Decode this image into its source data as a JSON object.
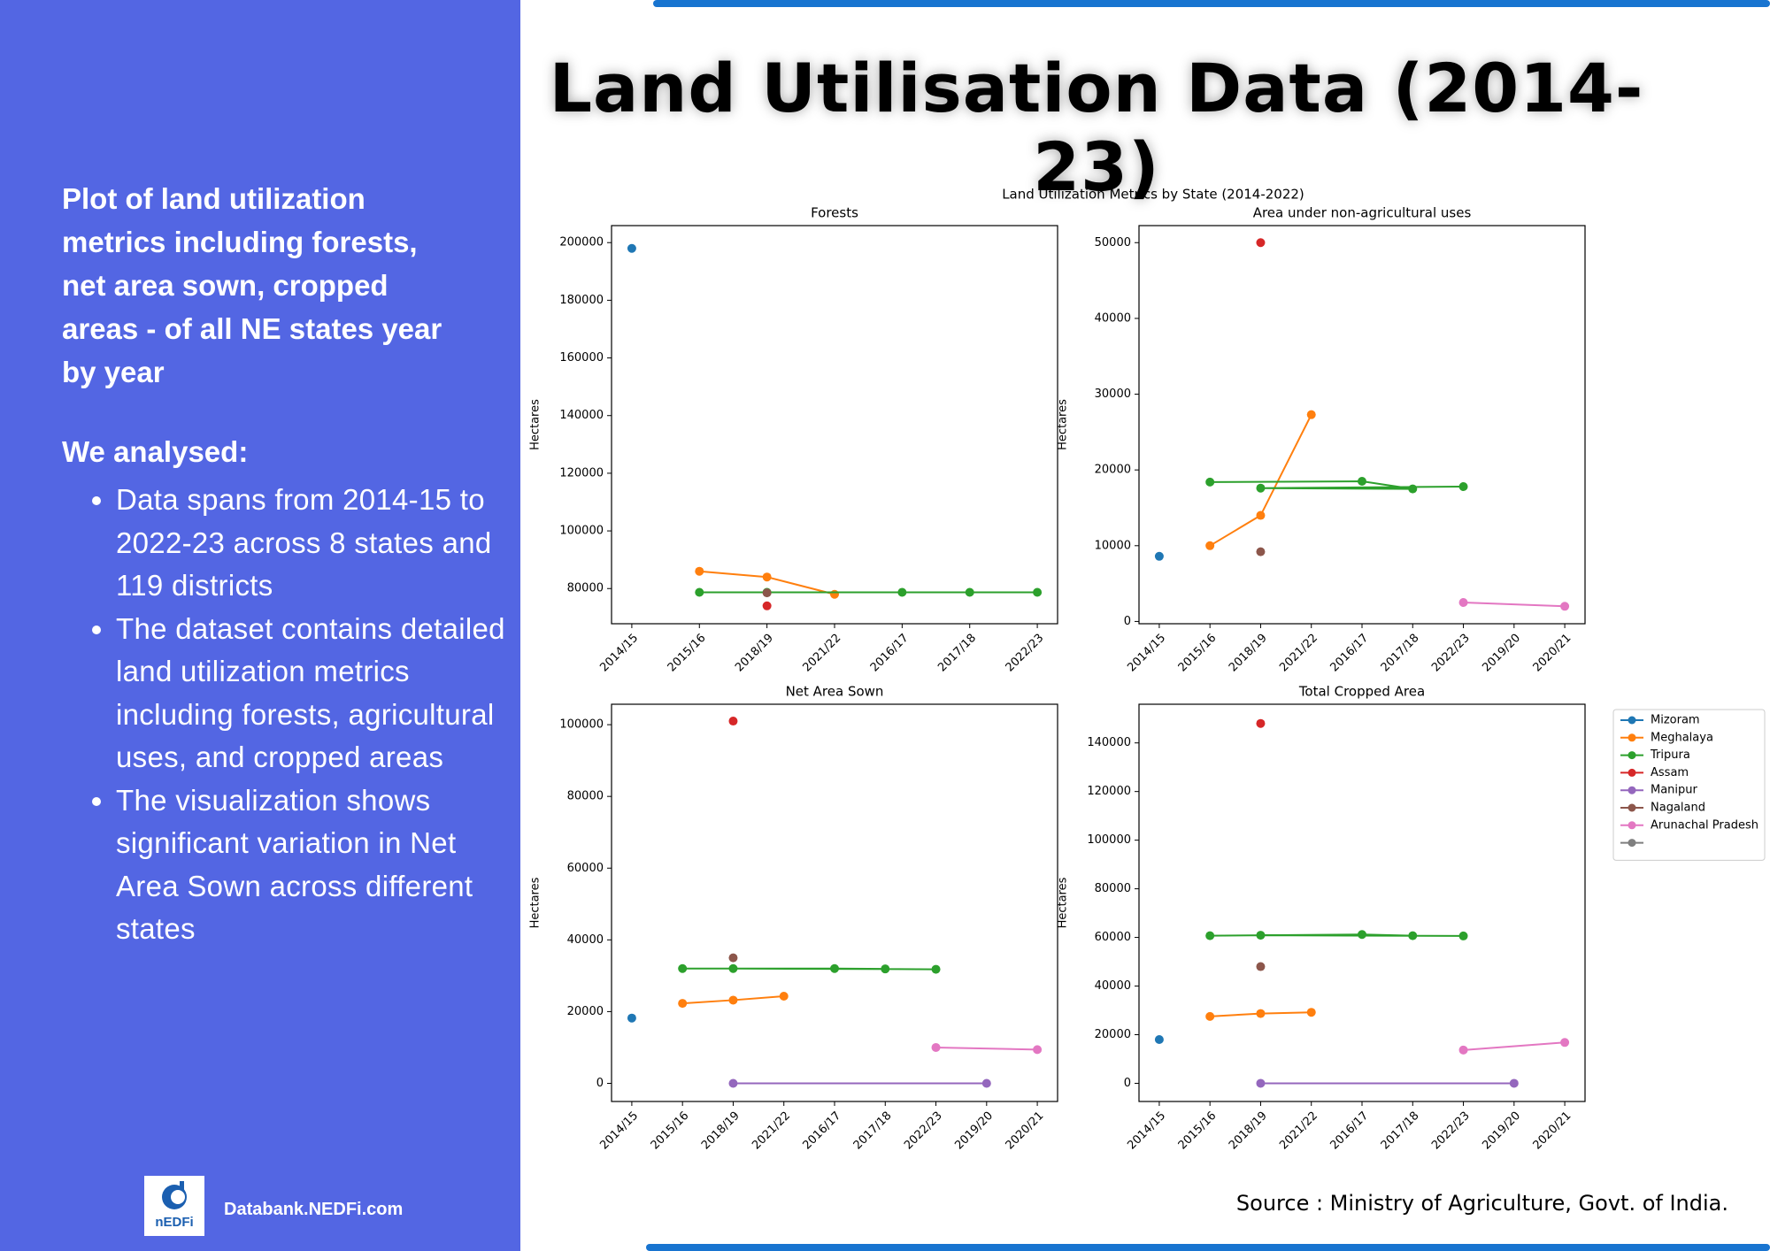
{
  "header": {
    "title": "Land Utilisation Data (2014-23)"
  },
  "sidebar": {
    "intro": "Plot of land utilization metrics including forests, net area sown, cropped areas - of all NE states year by year",
    "heading": "We analysed:",
    "bullets": [
      "Data spans from 2014-15 to 2022-23 across 8 states and 119 districts",
      "The dataset contains detailed land utilization metrics including forests, agricultural uses, and cropped areas",
      "The visualization shows significant variation in Net Area Sown across different states"
    ],
    "logo_text": "nEDFi",
    "website": "Databank.NEDFi.com"
  },
  "figure": {
    "suptitle": "Land Utilization Metrics by State (2014-2022)",
    "legend_location": "right",
    "legend": [
      {
        "name": "Mizoram",
        "color": "#1f77b4"
      },
      {
        "name": "Meghalaya",
        "color": "#ff7f0e"
      },
      {
        "name": "Tripura",
        "color": "#2ca02c"
      },
      {
        "name": "Assam",
        "color": "#d62728"
      },
      {
        "name": "Manipur",
        "color": "#9467bd"
      },
      {
        "name": "Nagaland",
        "color": "#8c564b"
      },
      {
        "name": "Arunachal Pradesh",
        "color": "#e377c2"
      },
      {
        "name": null,
        "color": "#7f7f7f"
      }
    ]
  },
  "chart_data": [
    {
      "type": "line",
      "title": "Forests",
      "ylabel": "Hectares",
      "categories": [
        "2014/15",
        "2015/16",
        "2018/19",
        "2021/22",
        "2016/17",
        "2017/18",
        "2022/23"
      ],
      "ylim": [
        67800,
        205900
      ],
      "yticks": [
        80000,
        100000,
        120000,
        140000,
        160000,
        180000,
        200000
      ],
      "series": [
        {
          "color": "#1f77b4",
          "x": [
            "2014/15"
          ],
          "values": [
            198000
          ]
        },
        {
          "color": "#ff7f0e",
          "x": [
            "2015/16",
            "2018/19",
            "2021/22"
          ],
          "values": [
            86000,
            84000,
            78000
          ]
        },
        {
          "color": "#2ca02c",
          "x": [
            "2015/16",
            "2016/17",
            "2017/18",
            "2018/19",
            "2022/23"
          ],
          "values": [
            78700,
            78700,
            78700,
            78700,
            78700
          ]
        },
        {
          "color": "#d62728",
          "x": [
            "2018/19"
          ],
          "values": [
            74000
          ]
        },
        {
          "color": "#8c564b",
          "x": [
            "2018/19"
          ],
          "values": [
            78500
          ]
        }
      ]
    },
    {
      "type": "line",
      "title": "Area under non-agricultural uses",
      "ylabel": "Hectares",
      "categories": [
        "2014/15",
        "2015/16",
        "2018/19",
        "2021/22",
        "2016/17",
        "2017/18",
        "2022/23",
        "2019/20",
        "2020/21"
      ],
      "ylim": [
        -300,
        52250
      ],
      "yticks": [
        0,
        10000,
        20000,
        30000,
        40000,
        50000
      ],
      "series": [
        {
          "color": "#1f77b4",
          "x": [
            "2014/15"
          ],
          "values": [
            8600
          ]
        },
        {
          "color": "#ff7f0e",
          "x": [
            "2015/16",
            "2018/19",
            "2021/22"
          ],
          "values": [
            10000,
            14000,
            27300
          ]
        },
        {
          "color": "#2ca02c",
          "x": [
            "2015/16",
            "2016/17",
            "2017/18",
            "2018/19",
            "2022/23"
          ],
          "values": [
            18400,
            18500,
            17500,
            17600,
            17800
          ]
        },
        {
          "color": "#d62728",
          "x": [
            "2018/19"
          ],
          "values": [
            50000
          ]
        },
        {
          "color": "#8c564b",
          "x": [
            "2018/19"
          ],
          "values": [
            9200
          ]
        },
        {
          "color": "#e377c2",
          "x": [
            "2020/21",
            "2022/23"
          ],
          "values": [
            2000,
            2500
          ]
        }
      ]
    },
    {
      "type": "line",
      "title": "Net Area Sown",
      "ylabel": "Hectares",
      "categories": [
        "2014/15",
        "2015/16",
        "2018/19",
        "2021/22",
        "2016/17",
        "2017/18",
        "2022/23",
        "2019/20",
        "2020/21"
      ],
      "ylim": [
        -5060,
        105700
      ],
      "yticks": [
        0,
        20000,
        40000,
        60000,
        80000,
        100000
      ],
      "series": [
        {
          "color": "#1f77b4",
          "x": [
            "2014/15"
          ],
          "values": [
            18200
          ]
        },
        {
          "color": "#ff7f0e",
          "x": [
            "2015/16",
            "2018/19",
            "2021/22"
          ],
          "values": [
            22300,
            23200,
            24300
          ]
        },
        {
          "color": "#2ca02c",
          "x": [
            "2015/16",
            "2016/17",
            "2017/18",
            "2018/19",
            "2022/23"
          ],
          "values": [
            32000,
            32000,
            31900,
            32000,
            31800
          ]
        },
        {
          "color": "#d62728",
          "x": [
            "2018/19"
          ],
          "values": [
            101000
          ]
        },
        {
          "color": "#9467bd",
          "x": [
            "2018/19",
            "2019/20"
          ],
          "values": [
            0,
            0
          ]
        },
        {
          "color": "#8c564b",
          "x": [
            "2018/19"
          ],
          "values": [
            35000
          ]
        },
        {
          "color": "#e377c2",
          "x": [
            "2020/21",
            "2022/23"
          ],
          "values": [
            9400,
            10000
          ]
        }
      ]
    },
    {
      "type": "line",
      "title": "Total Cropped Area",
      "ylabel": "Hectares",
      "categories": [
        "2014/15",
        "2015/16",
        "2018/19",
        "2021/22",
        "2016/17",
        "2017/18",
        "2022/23",
        "2019/20",
        "2020/21"
      ],
      "ylim": [
        -7470,
        155900
      ],
      "yticks": [
        0,
        20000,
        40000,
        60000,
        80000,
        100000,
        120000,
        140000
      ],
      "series": [
        {
          "color": "#1f77b4",
          "x": [
            "2014/15"
          ],
          "values": [
            18000
          ]
        },
        {
          "color": "#ff7f0e",
          "x": [
            "2015/16",
            "2018/19",
            "2021/22"
          ],
          "values": [
            27500,
            28700,
            29200
          ]
        },
        {
          "color": "#2ca02c",
          "x": [
            "2015/16",
            "2016/17",
            "2017/18",
            "2018/19",
            "2022/23"
          ],
          "values": [
            60700,
            61200,
            60700,
            60900,
            60600
          ]
        },
        {
          "color": "#d62728",
          "x": [
            "2018/19"
          ],
          "values": [
            148000
          ]
        },
        {
          "color": "#9467bd",
          "x": [
            "2018/19",
            "2019/20"
          ],
          "values": [
            0,
            0
          ]
        },
        {
          "color": "#8c564b",
          "x": [
            "2018/19"
          ],
          "values": [
            48000
          ]
        },
        {
          "color": "#e377c2",
          "x": [
            "2020/21",
            "2022/23"
          ],
          "values": [
            16800,
            13700
          ]
        }
      ]
    }
  ],
  "source": "Source : Ministry of Agriculture, Govt. of India."
}
